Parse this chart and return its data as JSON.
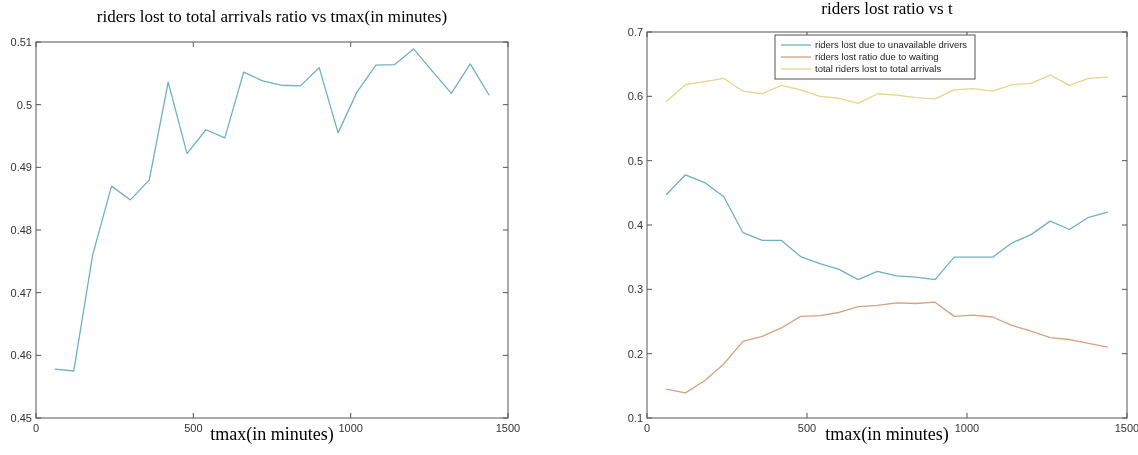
{
  "chart_data": [
    {
      "type": "line",
      "title": "riders lost to total arrivals ratio vs tmax(in minutes)",
      "xlabel": "tmax(in minutes)",
      "x": [
        60,
        120,
        180,
        240,
        300,
        360,
        420,
        480,
        540,
        600,
        660,
        720,
        780,
        840,
        900,
        960,
        1020,
        1080,
        1140,
        1200,
        1260,
        1320,
        1380,
        1440
      ],
      "series": [
        {
          "color": "#6fb0c2",
          "values": [
            0.4578,
            0.4575,
            0.476,
            0.487,
            0.4848,
            0.488,
            0.5036,
            0.4922,
            0.496,
            0.4947,
            0.5052,
            0.5038,
            0.5031,
            0.503,
            0.5059,
            0.4955,
            0.502,
            0.5063,
            0.5064,
            0.5089,
            0.5053,
            0.5018,
            0.5065,
            0.5015
          ]
        }
      ],
      "xlim": [
        0,
        1500
      ],
      "xticks": [
        0,
        500,
        1000,
        1500
      ],
      "ylim": [
        0.45,
        0.51
      ],
      "yticks": [
        0.45,
        0.46,
        0.47,
        0.48,
        0.49,
        0.5,
        0.51
      ],
      "grid": false,
      "legend": false
    },
    {
      "type": "line",
      "title": "riders lost ratio vs t",
      "xlabel": "tmax(in minutes)",
      "x": [
        60,
        120,
        180,
        240,
        300,
        360,
        420,
        480,
        540,
        600,
        660,
        720,
        780,
        840,
        900,
        960,
        1020,
        1080,
        1140,
        1200,
        1260,
        1320,
        1380,
        1440
      ],
      "series": [
        {
          "name": "riders lost due to unavailable drivers",
          "color": "#6fb0c2",
          "values": [
            0.447,
            0.478,
            0.466,
            0.444,
            0.388,
            0.376,
            0.376,
            0.351,
            0.34,
            0.331,
            0.315,
            0.328,
            0.321,
            0.319,
            0.315,
            0.35,
            0.35,
            0.35,
            0.372,
            0.385,
            0.406,
            0.393,
            0.412,
            0.42
          ]
        },
        {
          "name": "riders lost ratio due to waiting",
          "color": "#d9a07f",
          "values": [
            0.145,
            0.139,
            0.158,
            0.184,
            0.219,
            0.227,
            0.24,
            0.258,
            0.259,
            0.264,
            0.273,
            0.275,
            0.279,
            0.278,
            0.28,
            0.258,
            0.26,
            0.257,
            0.244,
            0.235,
            0.225,
            0.222,
            0.216,
            0.21
          ]
        },
        {
          "name": "total riders lost to total arrivals",
          "color": "#e6d58a",
          "values": [
            0.592,
            0.618,
            0.623,
            0.628,
            0.608,
            0.604,
            0.617,
            0.61,
            0.6,
            0.597,
            0.589,
            0.604,
            0.602,
            0.598,
            0.596,
            0.61,
            0.612,
            0.608,
            0.618,
            0.62,
            0.633,
            0.617,
            0.628,
            0.63
          ]
        }
      ],
      "xlim": [
        0,
        1500
      ],
      "xticks": [
        0,
        500,
        1000,
        1500
      ],
      "ylim": [
        0.1,
        0.7
      ],
      "yticks": [
        0.1,
        0.2,
        0.3,
        0.4,
        0.5,
        0.6,
        0.7
      ],
      "grid": false,
      "legend": "top"
    }
  ]
}
